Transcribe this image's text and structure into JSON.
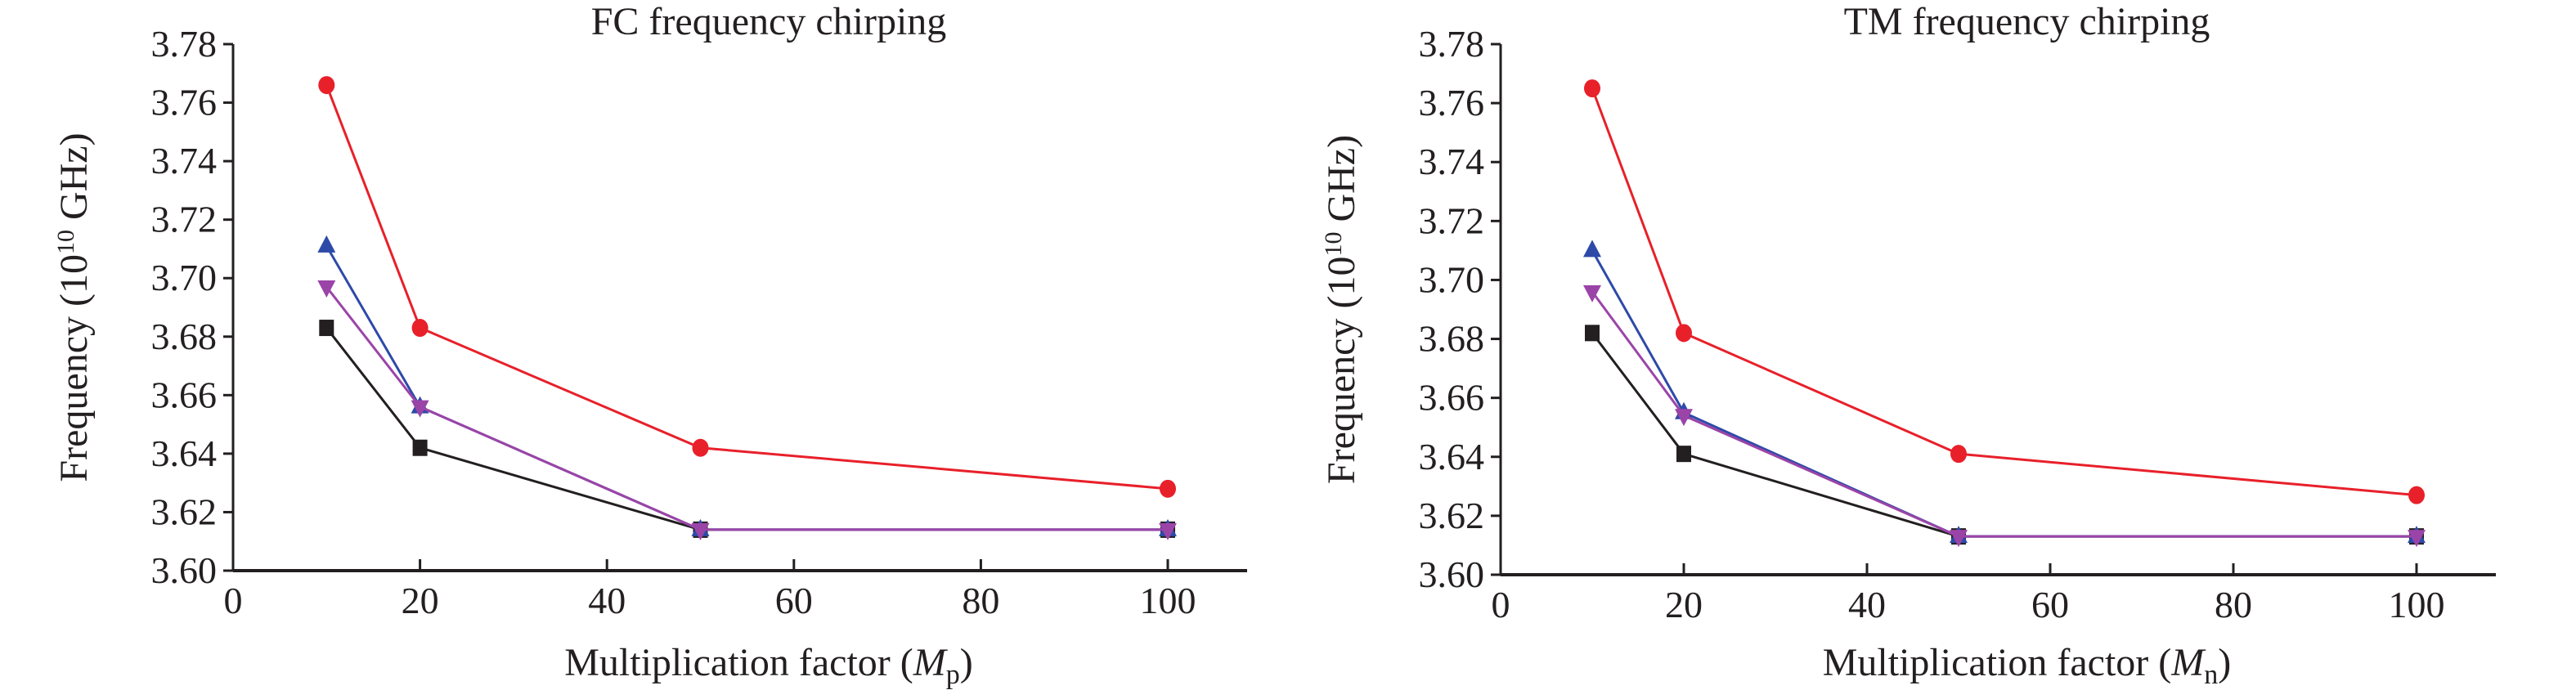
{
  "chart_data": [
    {
      "type": "line",
      "title": "FC frequency chirping",
      "xlabel": "Multiplication factor (M",
      "xlabel_sub": "p",
      "xlabel_end": ")",
      "ylabel": "Frequency (10",
      "ylabel_sup": "10",
      "ylabel_end": " GHz)",
      "xlim": [
        0,
        108
      ],
      "ylim": [
        3.6,
        3.78
      ],
      "xticks": [
        0,
        20,
        40,
        60,
        80,
        100
      ],
      "yticks": [
        3.6,
        3.62,
        3.64,
        3.66,
        3.68,
        3.7,
        3.72,
        3.74,
        3.76,
        3.78
      ],
      "grid": false,
      "x": [
        10,
        20,
        50,
        100
      ],
      "series": [
        {
          "marker": "circle",
          "color": "#e8202a",
          "values": [
            3.766,
            3.683,
            3.642,
            3.628
          ]
        },
        {
          "marker": "triangle-up",
          "color": "#2e4aa8",
          "values": [
            3.711,
            3.656,
            3.614,
            3.614
          ]
        },
        {
          "marker": "square",
          "color": "#231f20",
          "values": [
            3.683,
            3.642,
            3.614,
            3.614
          ]
        },
        {
          "marker": "triangle-down",
          "color": "#9b44a8",
          "values": [
            3.697,
            3.656,
            3.614,
            3.614
          ]
        }
      ]
    },
    {
      "type": "line",
      "title": "TM frequency chirping",
      "xlabel": "Multiplication factor (M",
      "xlabel_sub": "n",
      "xlabel_end": ")",
      "ylabel": "Frequency (10",
      "ylabel_sup": "10",
      "ylabel_end": " GHz)",
      "xlim": [
        0,
        108
      ],
      "ylim": [
        3.6,
        3.78
      ],
      "xticks": [
        0,
        20,
        40,
        60,
        80,
        100
      ],
      "yticks": [
        3.6,
        3.62,
        3.64,
        3.66,
        3.68,
        3.7,
        3.72,
        3.74,
        3.76,
        3.78
      ],
      "grid": false,
      "x": [
        10,
        20,
        50,
        100
      ],
      "series": [
        {
          "marker": "circle",
          "color": "#e8202a",
          "values": [
            3.765,
            3.682,
            3.641,
            3.627
          ]
        },
        {
          "marker": "triangle-up",
          "color": "#2e4aa8",
          "values": [
            3.71,
            3.655,
            3.613,
            3.613
          ]
        },
        {
          "marker": "square",
          "color": "#231f20",
          "values": [
            3.682,
            3.641,
            3.613,
            3.613
          ]
        },
        {
          "marker": "triangle-down",
          "color": "#9b44a8",
          "values": [
            3.696,
            3.654,
            3.613,
            3.613
          ]
        }
      ]
    }
  ]
}
